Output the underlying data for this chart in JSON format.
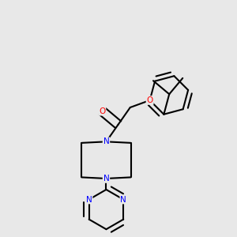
{
  "background_color": "#e8e8e8",
  "bond_color": "#000000",
  "atom_colors": {
    "N": "#0000ff",
    "O": "#ff0000",
    "C": "#000000"
  },
  "bond_width": 1.5,
  "font_size_atoms": 7.5,
  "figsize": [
    3.0,
    3.0
  ],
  "dpi": 100
}
